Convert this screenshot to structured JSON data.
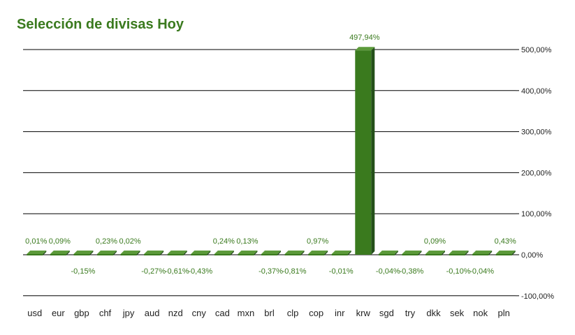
{
  "title": "Selección de divisas Hoy",
  "colors": {
    "bar_front": "#3a7a1e",
    "bar_top": "#5c9a3a",
    "bar_side": "#24501a",
    "label": "#3a7a1e",
    "grid": "#000000"
  },
  "chart_data": {
    "type": "bar",
    "title": "Selección de divisas Hoy",
    "xlabel": "",
    "ylabel": "",
    "ylim": [
      -100,
      500
    ],
    "y_ticks": [
      500,
      400,
      300,
      200,
      100,
      0,
      -100
    ],
    "y_tick_labels": [
      "500,00%",
      "400,00%",
      "300,00%",
      "200,00%",
      "100,00%",
      "0,00%",
      "-100,00%"
    ],
    "grid": true,
    "categories": [
      "usd",
      "eur",
      "gbp",
      "chf",
      "jpy",
      "aud",
      "nzd",
      "cny",
      "cad",
      "mxn",
      "brl",
      "clp",
      "cop",
      "inr",
      "krw",
      "sgd",
      "try",
      "dkk",
      "sek",
      "nok",
      "pln"
    ],
    "values": [
      0.01,
      0.09,
      -0.15,
      0.23,
      0.02,
      -0.27,
      -0.61,
      -0.43,
      0.24,
      0.13,
      -0.37,
      -0.81,
      0.97,
      -0.01,
      497.94,
      -0.04,
      -0.38,
      0.09,
      -0.1,
      -0.04,
      0.43
    ],
    "data_labels": [
      "0,01%",
      "0,09%",
      "-0,15%",
      "0,23%",
      "0,02%",
      "-0,27%",
      "-0,61%",
      "-0,43%",
      "0,24%",
      "0,13%",
      "-0,37%",
      "-0,81%",
      "0,97%",
      "-0,01%",
      "497,94%",
      "-0,04%",
      "-0,38%",
      "0,09%",
      "-0,10%",
      "-0,04%",
      "0,43%"
    ]
  }
}
